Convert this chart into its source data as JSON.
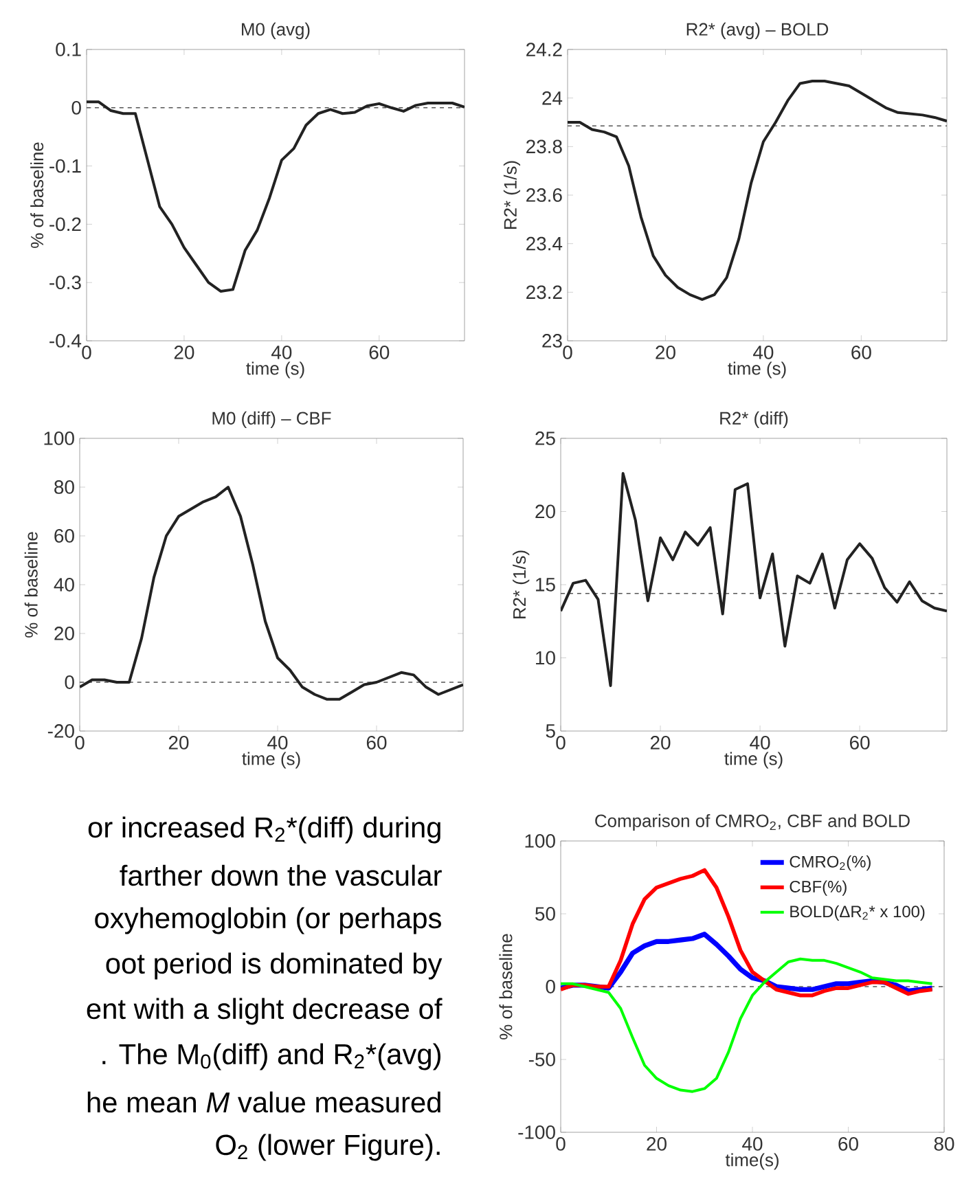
{
  "chart_data": [
    {
      "type": "line",
      "title": "M0 (avg)",
      "xlabel": "time (s)",
      "ylabel": "% of baseline",
      "xlim": [
        0,
        77.5
      ],
      "xticks": [
        0,
        20,
        40,
        60
      ],
      "ylim": [
        -0.4,
        0.1
      ],
      "yticks": [
        -0.4,
        -0.3,
        -0.2,
        -0.1,
        0,
        0.1
      ],
      "x": [
        0,
        2.5,
        5,
        7.5,
        10,
        12.5,
        15,
        17.5,
        20,
        22.5,
        25,
        27.5,
        30,
        32.5,
        35,
        37.5,
        40,
        42.5,
        45,
        47.5,
        50,
        52.5,
        55,
        57.5,
        60,
        62.5,
        65,
        67.5,
        70,
        72.5,
        75,
        77.5
      ],
      "series": [
        {
          "color": "#222222",
          "values": [
            0.01,
            0.01,
            -0.005,
            -0.01,
            -0.01,
            -0.09,
            -0.17,
            -0.2,
            -0.24,
            -0.27,
            -0.3,
            -0.315,
            -0.312,
            -0.245,
            -0.21,
            -0.155,
            -0.09,
            -0.07,
            -0.03,
            -0.01,
            -0.003,
            -0.01,
            -0.008,
            0.003,
            0.007,
            0,
            -0.006,
            0.004,
            0.008,
            0.008,
            0.008,
            0.001
          ]
        }
      ],
      "ref_lines": [
        {
          "axis": "y",
          "value": 0,
          "color": "#555555",
          "line_style": "dashed"
        }
      ]
    },
    {
      "type": "line",
      "title": "R2* (avg) – BOLD",
      "xlabel": "time (s)",
      "ylabel": "R2* (1/s)",
      "xlim": [
        0,
        77.5
      ],
      "xticks": [
        0,
        20,
        40,
        60
      ],
      "ylim": [
        23,
        24.2
      ],
      "yticks": [
        23,
        23.2,
        23.4,
        23.6,
        23.8,
        24,
        24.2
      ],
      "x": [
        0,
        2.5,
        5,
        7.5,
        10,
        12.5,
        15,
        17.5,
        20,
        22.5,
        25,
        27.5,
        30,
        32.5,
        35,
        37.5,
        40,
        42.5,
        45,
        47.5,
        50,
        52.5,
        55,
        57.5,
        60,
        62.5,
        65,
        67.5,
        70,
        72.5,
        75,
        77.5
      ],
      "series": [
        {
          "color": "#222222",
          "values": [
            23.9,
            23.9,
            23.87,
            23.86,
            23.84,
            23.72,
            23.51,
            23.35,
            23.27,
            23.22,
            23.19,
            23.17,
            23.19,
            23.26,
            23.42,
            23.65,
            23.82,
            23.9,
            23.99,
            24.06,
            24.07,
            24.07,
            24.06,
            24.05,
            24.02,
            23.99,
            23.96,
            23.94,
            23.935,
            23.93,
            23.92,
            23.905
          ]
        }
      ],
      "ref_lines": [
        {
          "axis": "y",
          "value": 23.885,
          "color": "#555555",
          "line_style": "dashed"
        }
      ]
    },
    {
      "type": "line",
      "title": "M0 (diff) – CBF",
      "xlabel": "time (s)",
      "ylabel": "% of baseline",
      "xlim": [
        0,
        77.5
      ],
      "xticks": [
        0,
        20,
        40,
        60
      ],
      "ylim": [
        -20,
        100
      ],
      "yticks": [
        -20,
        0,
        20,
        40,
        60,
        80,
        100
      ],
      "x": [
        0,
        2.5,
        5,
        7.5,
        10,
        12.5,
        15,
        17.5,
        20,
        22.5,
        25,
        27.5,
        30,
        32.5,
        35,
        37.5,
        40,
        42.5,
        45,
        47.5,
        50,
        52.5,
        55,
        57.5,
        60,
        62.5,
        65,
        67.5,
        70,
        72.5,
        75,
        77.5
      ],
      "series": [
        {
          "color": "#222222",
          "values": [
            -2,
            1,
            1,
            0,
            0,
            18,
            43,
            60,
            68,
            71,
            74,
            76,
            80,
            68,
            48,
            25,
            10,
            5,
            -2,
            -5,
            -7,
            -7,
            -4,
            -1,
            0,
            2,
            4,
            3,
            -2,
            -5,
            -3,
            -1
          ]
        }
      ],
      "ref_lines": [
        {
          "axis": "y",
          "value": 0,
          "color": "#555555",
          "line_style": "dashed"
        }
      ]
    },
    {
      "type": "line",
      "title": "R2* (diff)",
      "xlabel": "time (s)",
      "ylabel": "R2* (1/s)",
      "xlim": [
        0,
        77.5
      ],
      "xticks": [
        0,
        20,
        40,
        60
      ],
      "ylim": [
        5,
        25
      ],
      "yticks": [
        5,
        10,
        15,
        20,
        25
      ],
      "x": [
        0,
        2.5,
        5,
        7.5,
        10,
        12.5,
        15,
        17.5,
        20,
        22.5,
        25,
        27.5,
        30,
        32.5,
        35,
        37.5,
        40,
        42.5,
        45,
        47.5,
        50,
        52.5,
        55,
        57.5,
        60,
        62.5,
        65,
        67.5,
        70,
        72.5,
        75,
        77.5
      ],
      "series": [
        {
          "color": "#222222",
          "values": [
            13.2,
            15.1,
            15.3,
            14.0,
            8.1,
            22.6,
            19.4,
            13.9,
            18.2,
            16.7,
            18.6,
            17.7,
            18.9,
            13.0,
            21.5,
            21.9,
            14.1,
            17.1,
            10.8,
            15.6,
            15.1,
            17.1,
            13.4,
            16.7,
            17.8,
            16.8,
            14.8,
            13.8,
            15.2,
            13.9,
            13.4,
            13.2
          ]
        }
      ],
      "ref_lines": [
        {
          "axis": "y",
          "value": 14.4,
          "color": "#555555",
          "line_style": "dashed"
        }
      ]
    },
    {
      "type": "line",
      "title": "Comparison of CMRO$_{2}$, CBF and BOLD",
      "xlabel": "time(s)",
      "ylabel": "% of baseline",
      "xlim": [
        0,
        80
      ],
      "xticks": [
        0,
        20,
        40,
        60,
        80
      ],
      "ylim": [
        -100,
        100
      ],
      "yticks": [
        -100,
        -50,
        0,
        50,
        100
      ],
      "legend": "top right",
      "x": [
        0,
        2.5,
        5,
        7.5,
        10,
        12.5,
        15,
        17.5,
        20,
        22.5,
        25,
        27.5,
        30,
        32.5,
        35,
        37.5,
        40,
        42.5,
        45,
        47.5,
        50,
        52.5,
        55,
        57.5,
        60,
        62.5,
        65,
        67.5,
        70,
        72.5,
        75,
        77.5
      ],
      "series": [
        {
          "name": "CMRO$_{2}$(%)",
          "color": "#0000ff",
          "values": [
            -1,
            1,
            1,
            0,
            -1,
            10,
            23,
            28,
            31,
            31,
            32,
            33,
            36,
            29,
            21,
            12,
            6,
            4,
            0,
            -1,
            -2,
            -2,
            0,
            2,
            2,
            3,
            4,
            3,
            1,
            -3,
            -2,
            -1
          ]
        },
        {
          "name": "CBF(%)",
          "color": "#ff0000",
          "values": [
            -2,
            1,
            1,
            0,
            0,
            18,
            43,
            60,
            68,
            71,
            74,
            76,
            80,
            68,
            48,
            25,
            10,
            4,
            -2,
            -4,
            -6,
            -6,
            -3,
            -1,
            -1,
            1,
            3,
            3,
            -1,
            -5,
            -3,
            -2
          ]
        },
        {
          "name": "BOLD(ΔR$_{2}$* x 100)",
          "color": "#00ff00",
          "values": [
            2,
            2,
            0,
            -2,
            -4,
            -15,
            -35,
            -54,
            -63,
            -68,
            -71,
            -72,
            -70,
            -63,
            -45,
            -22,
            -6,
            3,
            10,
            17,
            19,
            18,
            18,
            16,
            13,
            10,
            6,
            5,
            4,
            4,
            3,
            2
          ]
        }
      ],
      "ref_lines": [
        {
          "axis": "y",
          "value": 0,
          "color": "#555555",
          "line_style": "dashed"
        }
      ]
    },
    {
      "type": "other",
      "annotations": [
        "or increased R$_{2}$*(diff) during",
        "farther down the vascular",
        "oxyhemoglobin (or perhaps",
        "oot period is dominated by",
        "ent with a slight decrease of",
        ". The M$_{0}$(diff) and R$_{2}$*(avg)",
        "he mean *M* value measured",
        "O$_{2}$ (lower Figure)."
      ]
    }
  ]
}
